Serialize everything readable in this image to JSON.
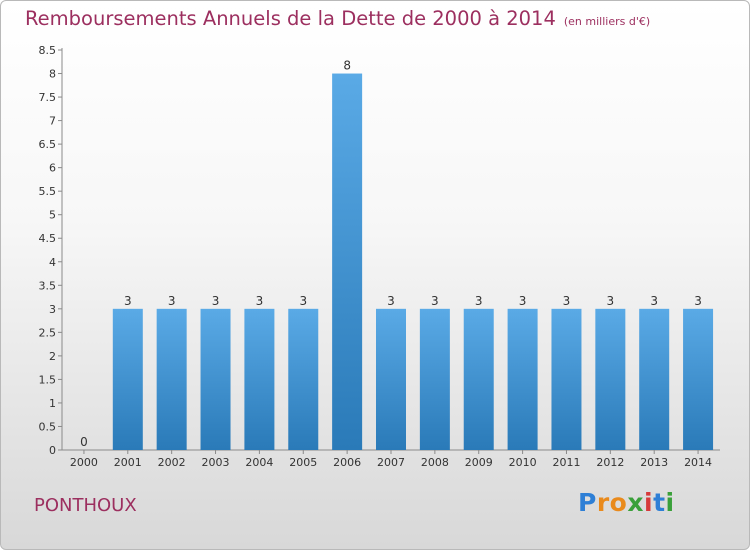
{
  "chart_data": {
    "type": "bar",
    "title": "Remboursements Annuels de la Dette de 2000 à 2014",
    "unit_note": "(en milliers d'€)",
    "categories": [
      "2000",
      "2001",
      "2002",
      "2003",
      "2004",
      "2005",
      "2006",
      "2007",
      "2008",
      "2009",
      "2010",
      "2011",
      "2012",
      "2013",
      "2014"
    ],
    "values": [
      0,
      3,
      3,
      3,
      3,
      3,
      8,
      3,
      3,
      3,
      3,
      3,
      3,
      3,
      3
    ],
    "value_labels": [
      "0",
      "3",
      "3",
      "3",
      "3",
      "3",
      "8",
      "3",
      "3",
      "3",
      "3",
      "3",
      "3",
      "3",
      "3"
    ],
    "ylim": [
      0,
      8.5
    ],
    "yticks": [
      "0",
      "0.5",
      "1",
      "1.5",
      "2",
      "2.5",
      "3",
      "3.5",
      "4",
      "4.5",
      "5",
      "5.5",
      "6",
      "6.5",
      "7",
      "7.5",
      "8",
      "8.5"
    ],
    "xlabel": "",
    "ylabel": "",
    "grid": false,
    "colors": {
      "bar_top": "#5aaae6",
      "bar_bottom": "#2a7ab8",
      "title": "#9c2f5f"
    }
  },
  "footer": {
    "place_name": "PONTHOUX",
    "logo_text": "Proxiti",
    "logo_letters": [
      {
        "ch": "P",
        "color": "#2e7fd6"
      },
      {
        "ch": "r",
        "color": "#e98a1c"
      },
      {
        "ch": "o",
        "color": "#e98a1c"
      },
      {
        "ch": "x",
        "color": "#3aa03a"
      },
      {
        "ch": "i",
        "color": "#d63a3a"
      },
      {
        "ch": "t",
        "color": "#2e7fd6"
      },
      {
        "ch": "i",
        "color": "#3aa03a"
      }
    ]
  }
}
